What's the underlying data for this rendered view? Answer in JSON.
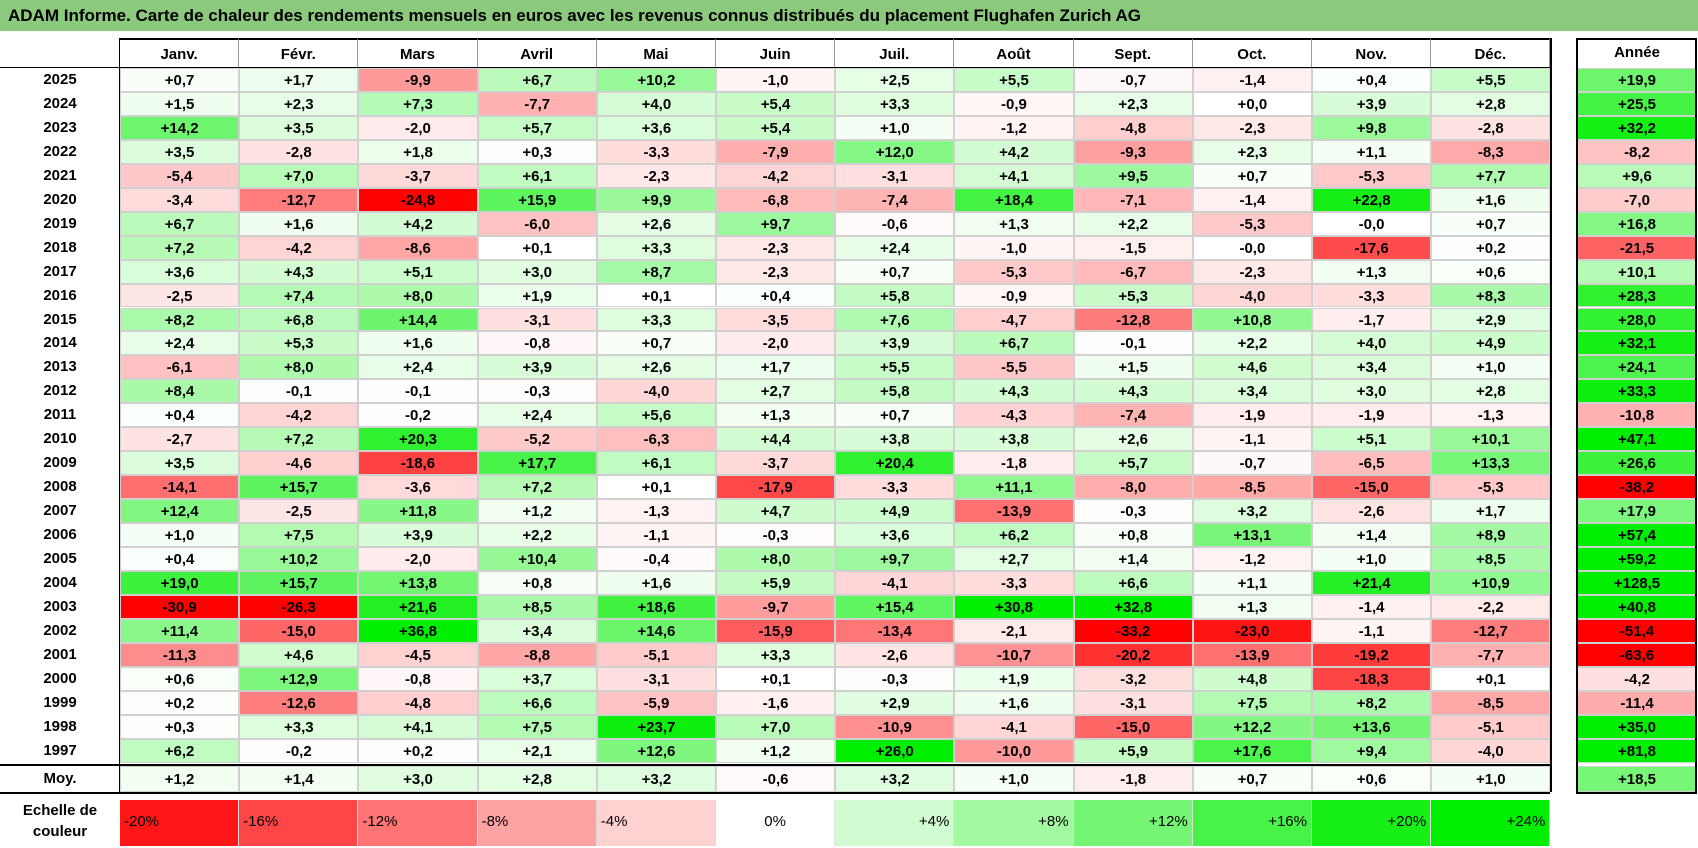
{
  "title": "ADAM Informe. Carte de chaleur des rendements mensuels en euros avec les revenus connus distribués du placement Flughafen Zurich AG",
  "chart_data": {
    "type": "heatmap",
    "title": "ADAM Informe. Carte de chaleur des rendements mensuels en euros avec les revenus connus distribués du placement Flughafen Zurich AG",
    "columns": [
      "Janv.",
      "Févr.",
      "Mars",
      "Avril",
      "Mai",
      "Juin",
      "Juil.",
      "Août",
      "Sept.",
      "Oct.",
      "Nov.",
      "Déc."
    ],
    "year_column": "Année",
    "rows": [
      {
        "year": "2025",
        "values": [
          "+0,7",
          "+1,7",
          "-9,9",
          "+6,7",
          "+10,2",
          "-1,0",
          "+2,5",
          "+5,5",
          "-0,7",
          "-1,4",
          "+0,4",
          "+5,5"
        ],
        "annual": "+19,9"
      },
      {
        "year": "2024",
        "values": [
          "+1,5",
          "+2,3",
          "+7,3",
          "-7,7",
          "+4,0",
          "+5,4",
          "+3,3",
          "-0,9",
          "+2,3",
          "+0,0",
          "+3,9",
          "+2,8"
        ],
        "annual": "+25,5"
      },
      {
        "year": "2023",
        "values": [
          "+14,2",
          "+3,5",
          "-2,0",
          "+5,7",
          "+3,6",
          "+5,4",
          "+1,0",
          "-1,2",
          "-4,8",
          "-2,3",
          "+9,8",
          "-2,8"
        ],
        "annual": "+32,2"
      },
      {
        "year": "2022",
        "values": [
          "+3,5",
          "-2,8",
          "+1,8",
          "+0,3",
          "-3,3",
          "-7,9",
          "+12,0",
          "+4,2",
          "-9,3",
          "+2,3",
          "+1,1",
          "-8,3"
        ],
        "annual": "-8,2"
      },
      {
        "year": "2021",
        "values": [
          "-5,4",
          "+7,0",
          "-3,7",
          "+6,1",
          "-2,3",
          "-4,2",
          "-3,1",
          "+4,1",
          "+9,5",
          "+0,7",
          "-5,3",
          "+7,7"
        ],
        "annual": "+9,6"
      },
      {
        "year": "2020",
        "values": [
          "-3,4",
          "-12,7",
          "-24,8",
          "+15,9",
          "+9,9",
          "-6,8",
          "-7,4",
          "+18,4",
          "-7,1",
          "-1,4",
          "+22,8",
          "+1,6"
        ],
        "annual": "-7,0"
      },
      {
        "year": "2019",
        "values": [
          "+6,7",
          "+1,6",
          "+4,2",
          "-6,0",
          "+2,6",
          "+9,7",
          "-0,6",
          "+1,3",
          "+2,2",
          "-5,3",
          "-0,0",
          "+0,7"
        ],
        "annual": "+16,8"
      },
      {
        "year": "2018",
        "values": [
          "+7,2",
          "-4,2",
          "-8,6",
          "+0,1",
          "+3,3",
          "-2,3",
          "+2,4",
          "-1,0",
          "-1,5",
          "-0,0",
          "-17,6",
          "+0,2"
        ],
        "annual": "-21,5"
      },
      {
        "year": "2017",
        "values": [
          "+3,6",
          "+4,3",
          "+5,1",
          "+3,0",
          "+8,7",
          "-2,3",
          "+0,7",
          "-5,3",
          "-6,7",
          "-2,3",
          "+1,3",
          "+0,6"
        ],
        "annual": "+10,1"
      },
      {
        "year": "2016",
        "values": [
          "-2,5",
          "+7,4",
          "+8,0",
          "+1,9",
          "+0,1",
          "+0,4",
          "+5,8",
          "-0,9",
          "+5,3",
          "-4,0",
          "-3,3",
          "+8,3"
        ],
        "annual": "+28,3"
      },
      {
        "year": "2015",
        "values": [
          "+8,2",
          "+6,8",
          "+14,4",
          "-3,1",
          "+3,3",
          "-3,5",
          "+7,6",
          "-4,7",
          "-12,8",
          "+10,8",
          "-1,7",
          "+2,9"
        ],
        "annual": "+28,0"
      },
      {
        "year": "2014",
        "values": [
          "+2,4",
          "+5,3",
          "+1,6",
          "-0,8",
          "+0,7",
          "-2,0",
          "+3,9",
          "+6,7",
          "-0,1",
          "+2,2",
          "+4,0",
          "+4,9"
        ],
        "annual": "+32,1"
      },
      {
        "year": "2013",
        "values": [
          "-6,1",
          "+8,0",
          "+2,4",
          "+3,9",
          "+2,6",
          "+1,7",
          "+5,5",
          "-5,5",
          "+1,5",
          "+4,6",
          "+3,4",
          "+1,0"
        ],
        "annual": "+24,1"
      },
      {
        "year": "2012",
        "values": [
          "+8,4",
          "-0,1",
          "-0,1",
          "-0,3",
          "-4,0",
          "+2,7",
          "+5,8",
          "+4,3",
          "+4,3",
          "+3,4",
          "+3,0",
          "+2,8"
        ],
        "annual": "+33,3"
      },
      {
        "year": "2011",
        "values": [
          "+0,4",
          "-4,2",
          "-0,2",
          "+2,4",
          "+5,6",
          "+1,3",
          "+0,7",
          "-4,3",
          "-7,4",
          "-1,9",
          "-1,9",
          "-1,3"
        ],
        "annual": "-10,8"
      },
      {
        "year": "2010",
        "values": [
          "-2,7",
          "+7,2",
          "+20,3",
          "-5,2",
          "-6,3",
          "+4,4",
          "+3,8",
          "+3,8",
          "+2,6",
          "-1,1",
          "+5,1",
          "+10,1"
        ],
        "annual": "+47,1"
      },
      {
        "year": "2009",
        "values": [
          "+3,5",
          "-4,6",
          "-18,6",
          "+17,7",
          "+6,1",
          "-3,7",
          "+20,4",
          "-1,8",
          "+5,7",
          "-0,7",
          "-6,5",
          "+13,3"
        ],
        "annual": "+26,6"
      },
      {
        "year": "2008",
        "values": [
          "-14,1",
          "+15,7",
          "-3,6",
          "+7,2",
          "+0,1",
          "-17,9",
          "-3,3",
          "+11,1",
          "-8,0",
          "-8,5",
          "-15,0",
          "-5,3"
        ],
        "annual": "-38,2"
      },
      {
        "year": "2007",
        "values": [
          "+12,4",
          "-2,5",
          "+11,8",
          "+1,2",
          "-1,3",
          "+4,7",
          "+4,9",
          "-13,9",
          "-0,3",
          "+3,2",
          "-2,6",
          "+1,7"
        ],
        "annual": "+17,9"
      },
      {
        "year": "2006",
        "values": [
          "+1,0",
          "+7,5",
          "+3,9",
          "+2,2",
          "-1,1",
          "-0,3",
          "+3,6",
          "+6,2",
          "+0,8",
          "+13,1",
          "+1,4",
          "+8,9"
        ],
        "annual": "+57,4"
      },
      {
        "year": "2005",
        "values": [
          "+0,4",
          "+10,2",
          "-2,0",
          "+10,4",
          "-0,4",
          "+8,0",
          "+9,7",
          "+2,7",
          "+1,4",
          "-1,2",
          "+1,0",
          "+8,5"
        ],
        "annual": "+59,2"
      },
      {
        "year": "2004",
        "values": [
          "+19,0",
          "+15,7",
          "+13,8",
          "+0,8",
          "+1,6",
          "+5,9",
          "-4,1",
          "-3,3",
          "+6,6",
          "+1,1",
          "+21,4",
          "+10,9"
        ],
        "annual": "+128,5"
      },
      {
        "year": "2003",
        "values": [
          "-30,9",
          "-26,3",
          "+21,6",
          "+8,5",
          "+18,6",
          "-9,7",
          "+15,4",
          "+30,8",
          "+32,8",
          "+1,3",
          "-1,4",
          "-2,2"
        ],
        "annual": "+40,8"
      },
      {
        "year": "2002",
        "values": [
          "+11,4",
          "-15,0",
          "+36,8",
          "+3,4",
          "+14,6",
          "-15,9",
          "-13,4",
          "-2,1",
          "-33,2",
          "-23,0",
          "-1,1",
          "-12,7"
        ],
        "annual": "-51,4"
      },
      {
        "year": "2001",
        "values": [
          "-11,3",
          "+4,6",
          "-4,5",
          "-8,8",
          "-5,1",
          "+3,3",
          "-2,6",
          "-10,7",
          "-20,2",
          "-13,9",
          "-19,2",
          "-7,7"
        ],
        "annual": "-63,6"
      },
      {
        "year": "2000",
        "values": [
          "+0,6",
          "+12,9",
          "-0,8",
          "+3,7",
          "-3,1",
          "+0,1",
          "-0,3",
          "+1,9",
          "-3,2",
          "+4,8",
          "-18,3",
          "+0,1"
        ],
        "annual": "-4,2"
      },
      {
        "year": "1999",
        "values": [
          "+0,2",
          "-12,6",
          "-4,8",
          "+6,6",
          "-5,9",
          "-1,6",
          "+2,9",
          "+1,6",
          "-3,1",
          "+7,5",
          "+8,2",
          "-8,5"
        ],
        "annual": "-11,4"
      },
      {
        "year": "1998",
        "values": [
          "+0,3",
          "+3,3",
          "+4,1",
          "+7,5",
          "+23,7",
          "+7,0",
          "-10,9",
          "-4,1",
          "-15,0",
          "+12,2",
          "+13,6",
          "-5,1"
        ],
        "annual": "+35,0"
      },
      {
        "year": "1997",
        "values": [
          "+6,2",
          "-0,2",
          "+0,2",
          "+2,1",
          "+12,6",
          "+1,2",
          "+26,0",
          "-10,0",
          "+5,9",
          "+17,6",
          "+9,4",
          "-4,0"
        ],
        "annual": "+81,8"
      }
    ],
    "average": {
      "label": "Moy.",
      "values": [
        "+1,2",
        "+1,4",
        "+3,0",
        "+2,8",
        "+3,2",
        "-0,6",
        "+3,2",
        "+1,0",
        "-1,8",
        "+0,7",
        "+0,6",
        "+1,0"
      ],
      "annual": "+18,5"
    },
    "color_scale": {
      "label": "Echelle de couleur",
      "stops": [
        "-20%",
        "-16%",
        "-12%",
        "-8%",
        "-4%",
        "0%",
        "+4%",
        "+8%",
        "+12%",
        "+16%",
        "+20%",
        "+24%"
      ],
      "negative_color": "#ff0000",
      "positive_color": "#00ee00",
      "neutral_color": "#ffffff"
    }
  }
}
